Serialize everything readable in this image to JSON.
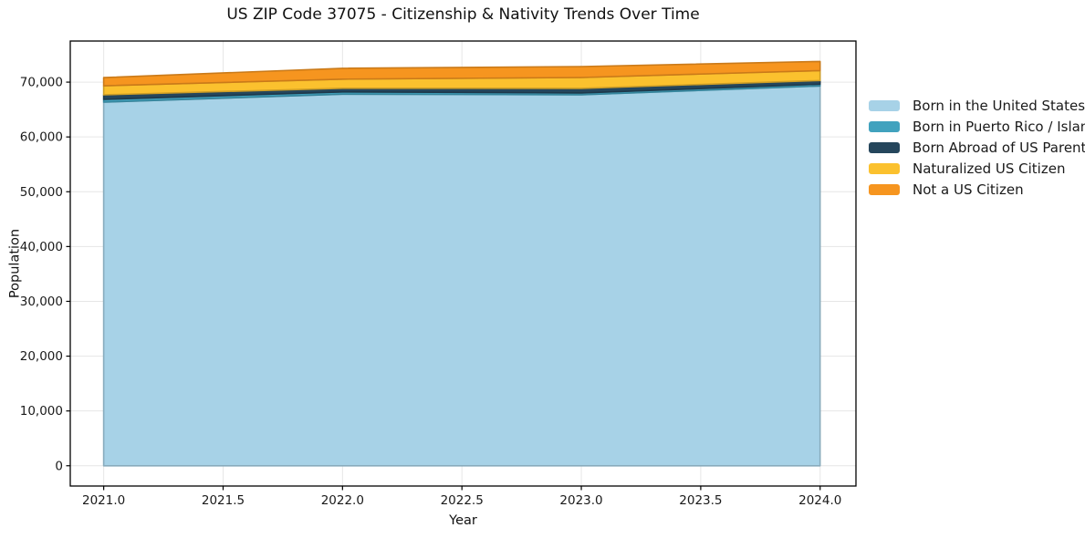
{
  "chart_data": {
    "type": "area",
    "stacked": true,
    "title": "US ZIP Code 37075 - Citizenship & Nativity Trends Over Time",
    "xlabel": "Year",
    "ylabel": "Population",
    "x": [
      2021,
      2022,
      2023,
      2024
    ],
    "series": [
      {
        "name": "Born in the United States",
        "color": "#A7D2E7",
        "values": [
          66350,
          67800,
          67700,
          69300
        ]
      },
      {
        "name": "Born in Puerto Rico / Islands",
        "color": "#41A2BE",
        "values": [
          500,
          420,
          330,
          330
        ]
      },
      {
        "name": "Born Abroad of US Parent(s)",
        "color": "#25465C",
        "values": [
          830,
          660,
          830,
          660
        ]
      },
      {
        "name": "Naturalized US Citizen",
        "color": "#FBC12E",
        "values": [
          1650,
          1660,
          1990,
          1820
        ]
      },
      {
        "name": "Not a US Citizen",
        "color": "#F6951F",
        "values": [
          1490,
          1990,
          1990,
          1660
        ]
      }
    ],
    "xticks": [
      2021.0,
      2021.5,
      2022.0,
      2022.5,
      2023.0,
      2023.5,
      2024.0
    ],
    "xtick_labels": [
      "2021.0",
      "2021.5",
      "2022.0",
      "2022.5",
      "2023.0",
      "2023.5",
      "2024.0"
    ],
    "yticks": [
      0,
      10000,
      20000,
      30000,
      40000,
      50000,
      60000,
      70000
    ],
    "ytick_labels": [
      "0",
      "10,000",
      "20,000",
      "30,000",
      "40,000",
      "50,000",
      "60,000",
      "70,000"
    ],
    "xlim": [
      2020.86,
      2024.15
    ],
    "ylim": [
      -3700,
      77500
    ],
    "grid": true,
    "grid_color": "#e6e6e6",
    "spine_color": "#000000",
    "tick_color": "#1a1a1a",
    "background": "#ffffff",
    "legend_position": "outside-right"
  }
}
